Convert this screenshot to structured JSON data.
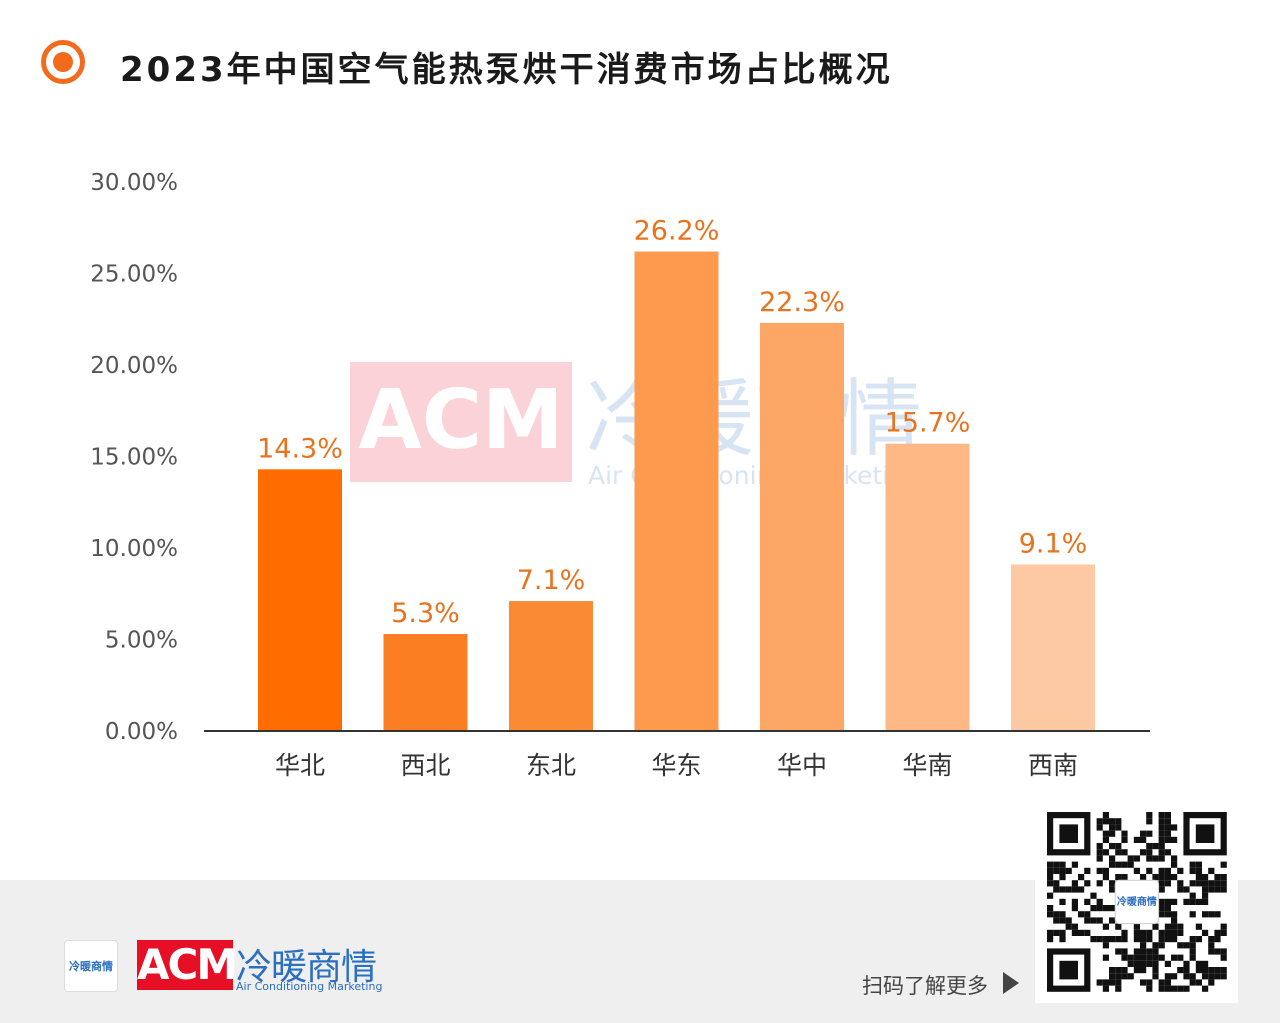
{
  "title": "2023年中国空气能热泵烘干消费市场占比概况",
  "chart_data": {
    "type": "bar",
    "categories": [
      "华北",
      "西北",
      "东北",
      "华东",
      "华中",
      "华南",
      "西南"
    ],
    "values": [
      14.3,
      5.3,
      7.1,
      26.2,
      22.3,
      15.7,
      9.1
    ],
    "data_labels": [
      "14.3%",
      "5.3%",
      "7.1%",
      "26.2%",
      "22.3%",
      "15.7%",
      "9.1%"
    ],
    "bar_colors": [
      "#ff6d00",
      "#fb7f22",
      "#fa8b32",
      "#fd9a4e",
      "#fda767",
      "#fdb886",
      "#fdc9a2"
    ],
    "ylim": [
      0,
      30
    ],
    "yticks": [
      "0.00%",
      "5.00%",
      "10.00%",
      "15.00%",
      "20.00%",
      "25.00%",
      "30.00%"
    ],
    "grid": false,
    "legend": "none"
  },
  "watermark": {
    "acronym": "ACM",
    "cn": "冷暖商情",
    "en": "Air Conditioning Marketing"
  },
  "footer": {
    "small_logo_text": "冷暖商情",
    "brand_acronym": "ACM",
    "brand_cn": "冷暖商情",
    "brand_en": "Air Conditioning Marketing",
    "scan_text": "扫码了解更多",
    "qr_center_text": "冷暖商情"
  },
  "colors": {
    "accent": "#f26a1b",
    "label": "#e8731f",
    "brand_red": "#e60f26",
    "brand_blue": "#2a6fc0"
  }
}
